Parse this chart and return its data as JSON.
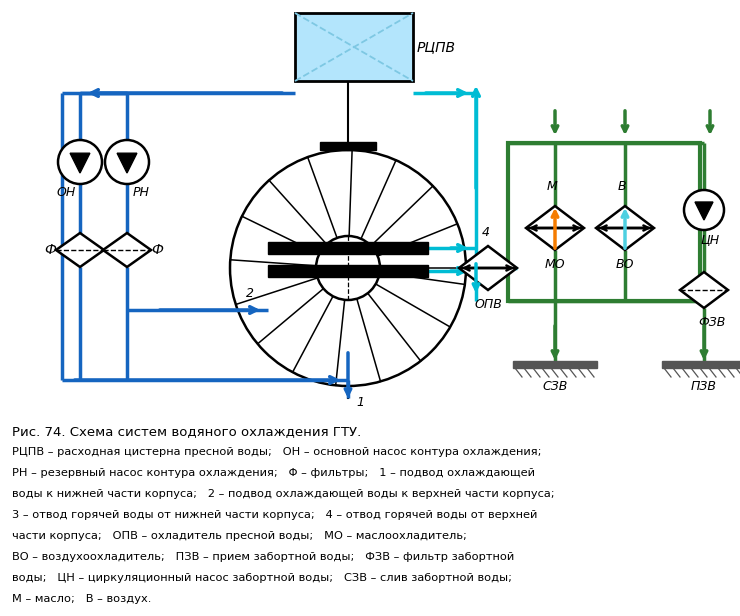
{
  "title": "Рис. 74. Схема систем водяного охлаждения ГТУ.",
  "caption": [
    "РЦПВ – расходная цистерна пресной воды;   ОН – основной насос контура охлаждения;",
    "РН – резервный насос контура охлаждения;   Φ – фильтры;   1 – подвод охлаждающей",
    "воды к нижней части корпуса;   2 – подвод охлаждающей воды к верхней части корпуса;",
    "3 – отвод горячей воды от нижней части корпуса;   4 – отвод горячей воды от верхней",
    "части корпуса;   ОПВ – охладитель пресной воды;   МО – маслоохладитель;",
    "ВО – воздухоохладитель;   ПЗВ – прием забортной воды;   ФЗВ – фильтр забортной",
    "воды;   ЦН – циркуляционный насос забортной воды;   СЗВ – слив забортной воды;",
    "М – масло;   В – воздух."
  ],
  "blue": "#1565c0",
  "cyan": "#00bcd4",
  "green": "#2e7d32",
  "orange": "#f57c00",
  "lightblue": "#4dd0e1",
  "black": "#000000",
  "white": "#ffffff",
  "rcpv_fill": "#b3e5fc",
  "gray": "#757575"
}
